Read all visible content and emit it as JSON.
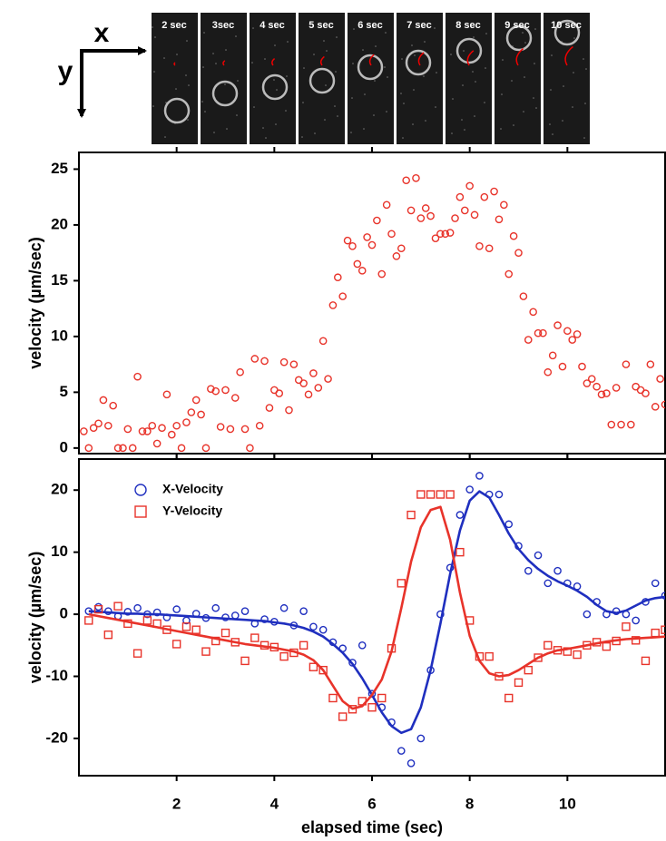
{
  "image_strip": {
    "axis_x": "x",
    "axis_y": "y",
    "frames": [
      "2 sec",
      "3sec",
      "4 sec",
      "5 sec",
      "6 sec",
      "7 sec",
      "8 sec",
      "9 sec",
      "10 sec"
    ]
  },
  "chart_data": [
    {
      "type": "scatter",
      "y_label": "velocity (µm/sec)",
      "x": [
        0.1,
        0.2,
        0.3,
        0.4,
        0.5,
        0.6,
        0.7,
        0.8,
        0.9,
        1.0,
        1.1,
        1.2,
        1.3,
        1.4,
        1.5,
        1.6,
        1.7,
        1.8,
        1.9,
        2.0,
        2.1,
        2.2,
        2.3,
        2.4,
        2.5,
        2.6,
        2.7,
        2.8,
        2.9,
        3.0,
        3.1,
        3.2,
        3.3,
        3.4,
        3.5,
        3.6,
        3.7,
        3.8,
        3.9,
        4.0,
        4.1,
        4.2,
        4.3,
        4.4,
        4.5,
        4.6,
        4.7,
        4.8,
        4.9,
        5.0,
        5.1,
        5.2,
        5.3,
        5.4,
        5.5,
        5.6,
        5.7,
        5.8,
        5.9,
        6.0,
        6.1,
        6.2,
        6.3,
        6.4,
        6.5,
        6.6,
        6.7,
        6.8,
        6.9,
        7.0,
        7.1,
        7.2,
        7.3,
        7.4,
        7.5,
        7.6,
        7.7,
        7.8,
        7.9,
        8.0,
        8.1,
        8.2,
        8.3,
        8.4,
        8.5,
        8.6,
        8.7,
        8.8,
        8.9,
        9.0,
        9.1,
        9.2,
        9.3,
        9.4,
        9.5,
        9.6,
        9.7,
        9.8,
        9.9,
        10.0,
        10.1,
        10.2,
        10.3,
        10.4,
        10.5,
        10.6,
        10.7,
        10.8,
        10.9,
        11.0,
        11.1,
        11.2,
        11.3,
        11.4,
        11.5,
        11.6,
        11.7,
        11.8,
        11.9,
        12.0
      ],
      "series": [
        {
          "color": "#e8332a",
          "marker": "circle",
          "values": [
            1.5,
            0,
            1.8,
            2.2,
            4.3,
            2.0,
            3.8,
            0,
            0,
            1.7,
            0,
            6.4,
            1.5,
            1.5,
            2.0,
            0.4,
            1.8,
            4.8,
            1.2,
            2.0,
            0,
            2.3,
            3.2,
            4.3,
            3.0,
            0,
            5.3,
            5.1,
            1.9,
            5.2,
            1.7,
            4.5,
            6.8,
            1.7,
            0,
            8.0,
            2.0,
            7.8,
            3.6,
            5.2,
            4.9,
            7.7,
            3.4,
            7.5,
            6.1,
            5.8,
            4.8,
            6.7,
            5.4,
            9.6,
            6.2,
            12.8,
            15.3,
            13.6,
            18.6,
            18.1,
            16.5,
            15.9,
            18.9,
            18.2,
            20.4,
            15.6,
            21.8,
            19.2,
            17.2,
            17.9,
            24.0,
            21.3,
            24.2,
            20.6,
            21.5,
            20.8,
            18.8,
            19.2,
            19.2,
            19.3,
            20.6,
            22.5,
            21.3,
            23.5,
            20.9,
            18.1,
            22.5,
            17.9,
            23.0,
            20.5,
            21.8,
            15.6,
            19.0,
            17.5,
            13.6,
            9.7,
            12.2,
            10.3,
            10.3,
            6.8,
            8.3,
            11.0,
            7.3,
            10.5,
            9.7,
            10.2,
            7.3,
            5.8,
            6.2,
            5.5,
            4.8,
            4.9,
            2.1,
            5.4,
            2.1,
            7.5,
            2.1,
            5.5,
            5.2,
            4.9,
            7.5,
            3.7,
            6.2,
            3.9
          ]
        }
      ],
      "xlim": [
        0,
        12
      ],
      "xticks": [
        2,
        4,
        6,
        8,
        10
      ],
      "ylim": [
        -0.5,
        26.5
      ],
      "yticks": [
        0,
        5,
        10,
        15,
        20,
        25
      ]
    },
    {
      "type": "scatter",
      "y_label": "velocity (µm/sec)",
      "x_label": "elapsed time (sec)",
      "legend": "upper left",
      "x": [
        0.2,
        0.4,
        0.6,
        0.8,
        1.0,
        1.2,
        1.4,
        1.6,
        1.8,
        2.0,
        2.2,
        2.4,
        2.6,
        2.8,
        3.0,
        3.2,
        3.4,
        3.6,
        3.8,
        4.0,
        4.2,
        4.4,
        4.6,
        4.8,
        5.0,
        5.2,
        5.4,
        5.6,
        5.8,
        6.0,
        6.2,
        6.4,
        6.6,
        6.8,
        7.0,
        7.2,
        7.4,
        7.6,
        7.8,
        8.0,
        8.2,
        8.4,
        8.6,
        8.8,
        9.0,
        9.2,
        9.4,
        9.6,
        9.8,
        10.0,
        10.2,
        10.4,
        10.6,
        10.8,
        11.0,
        11.2,
        11.4,
        11.6,
        11.8,
        12.0
      ],
      "series": [
        {
          "name": "X-Velocity",
          "color": "#1f2fbf",
          "marker": "circle",
          "values": [
            0.5,
            1.2,
            0.5,
            -0.3,
            0.4,
            1.0,
            0,
            0.3,
            -0.5,
            0.8,
            -1.0,
            0.1,
            -0.6,
            1.0,
            -0.5,
            -0.2,
            0.5,
            -1.5,
            -0.8,
            -1.2,
            1.0,
            -1.8,
            0.5,
            -2.0,
            -2.5,
            -4.5,
            -5.5,
            -7.8,
            -5.0,
            -12.8,
            -15.0,
            -17.4,
            -22.0,
            -24.0,
            -20.0,
            -9.0,
            0,
            7.5,
            16.0,
            20.1,
            22.3,
            19.3,
            19.3,
            14.5,
            11.0,
            7.0,
            9.5,
            5.0,
            7.0,
            5.0,
            4.5,
            0,
            2.0,
            0,
            0.5,
            0,
            -1.0,
            2.0,
            5.0,
            3.0
          ],
          "fit": [
            0.5,
            0.4,
            0.3,
            0.2,
            0.1,
            0.1,
            0,
            0,
            -0.1,
            -0.2,
            -0.3,
            -0.4,
            -0.5,
            -0.6,
            -0.7,
            -0.8,
            -0.9,
            -1.0,
            -1.1,
            -1.3,
            -1.5,
            -1.8,
            -2.2,
            -2.8,
            -3.6,
            -4.8,
            -6.2,
            -8.0,
            -10.3,
            -13.0,
            -15.8,
            -18.0,
            -19.1,
            -18.5,
            -15.0,
            -9.0,
            -1.5,
            6.5,
            13.5,
            18.3,
            19.8,
            18.8,
            16.0,
            13.0,
            10.5,
            8.7,
            7.3,
            6.2,
            5.3,
            4.6,
            3.8,
            2.8,
            1.5,
            0.5,
            0.2,
            0.6,
            1.4,
            2.2,
            2.6,
            2.8
          ]
        },
        {
          "name": "Y-Velocity",
          "color": "#e8332a",
          "marker": "square",
          "values": [
            -1.0,
            0.8,
            -3.3,
            1.3,
            -1.5,
            -6.3,
            -1.0,
            -1.5,
            -2.5,
            -4.8,
            -2.0,
            -2.5,
            -6.0,
            -4.3,
            -3.0,
            -4.5,
            -7.5,
            -3.8,
            -5.0,
            -5.3,
            -6.8,
            -6.2,
            -5.0,
            -8.5,
            -9.0,
            -13.5,
            -16.5,
            -15.3,
            -14.0,
            -15.0,
            -13.5,
            -5.5,
            5.0,
            16.0,
            19.3,
            19.3,
            19.3,
            19.3,
            10.0,
            -1.0,
            -6.8,
            -6.8,
            -10.0,
            -13.5,
            -11.0,
            -9.0,
            -7.0,
            -5.0,
            -5.8,
            -6.0,
            -6.5,
            -5.0,
            -4.5,
            -5.2,
            -4.3,
            -2.0,
            -4.2,
            -7.5,
            -3.0,
            -2.5
          ],
          "fit": [
            0,
            -0.3,
            -0.6,
            -0.9,
            -1.2,
            -1.5,
            -1.8,
            -2.1,
            -2.4,
            -2.7,
            -3.0,
            -3.3,
            -3.6,
            -3.9,
            -4.2,
            -4.5,
            -4.8,
            -5.0,
            -5.2,
            -5.4,
            -5.7,
            -6.0,
            -6.5,
            -7.4,
            -9.0,
            -11.5,
            -14.0,
            -15.2,
            -14.8,
            -13.0,
            -10.5,
            -6.0,
            1.0,
            8.5,
            14.0,
            16.8,
            17.3,
            12.0,
            3.5,
            -3.5,
            -7.5,
            -9.5,
            -10.0,
            -9.8,
            -9.0,
            -8.0,
            -7.0,
            -6.3,
            -5.8,
            -5.6,
            -5.3,
            -5.0,
            -4.7,
            -4.4,
            -4.2,
            -4.0,
            -3.9,
            -3.8,
            -3.7,
            -3.6
          ]
        }
      ],
      "xlim": [
        0,
        12
      ],
      "xticks": [
        2,
        4,
        6,
        8,
        10
      ],
      "ylim": [
        -26,
        25
      ],
      "yticks": [
        -20,
        -10,
        0,
        10,
        20
      ]
    }
  ]
}
